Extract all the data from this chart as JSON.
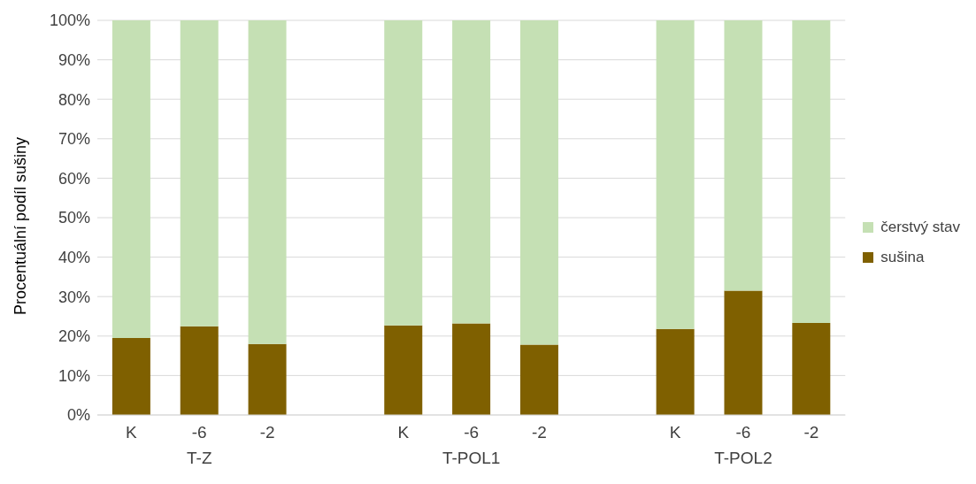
{
  "chart_data": {
    "type": "bar",
    "stacked": true,
    "ylabel": "Procentuální podíl sušiny",
    "categories": [
      "K",
      "-6",
      "-2",
      null,
      "K",
      "-6",
      "-2",
      null,
      "K",
      "-6",
      "-2"
    ],
    "series": [
      {
        "name": "sušina",
        "color": "#7f6000",
        "values": [
          19.5,
          22.5,
          18,
          null,
          22.7,
          23.2,
          17.8,
          null,
          21.8,
          31.5,
          23.3
        ]
      },
      {
        "name": "čerstvý stav",
        "color": "#c5e0b4",
        "values": [
          80.5,
          77.5,
          82,
          null,
          77.3,
          76.8,
          82.2,
          null,
          78.2,
          68.5,
          76.7
        ]
      }
    ],
    "ylim": [
      0,
      100
    ],
    "yticks": [
      {
        "value": 0,
        "label": "0%"
      },
      {
        "value": 10,
        "label": "10%"
      },
      {
        "value": 20,
        "label": "20%"
      },
      {
        "value": 30,
        "label": "30%"
      },
      {
        "value": 40,
        "label": "40%"
      },
      {
        "value": 50,
        "label": "50%"
      },
      {
        "value": 60,
        "label": "60%"
      },
      {
        "value": 70,
        "label": "70%"
      },
      {
        "value": 80,
        "label": "80%"
      },
      {
        "value": 90,
        "label": "90%"
      },
      {
        "value": 100,
        "label": "100%"
      }
    ],
    "annotations": [
      "T-Z",
      "T-POL1",
      "T-POL2"
    ],
    "grid": "y",
    "legend": "right"
  }
}
